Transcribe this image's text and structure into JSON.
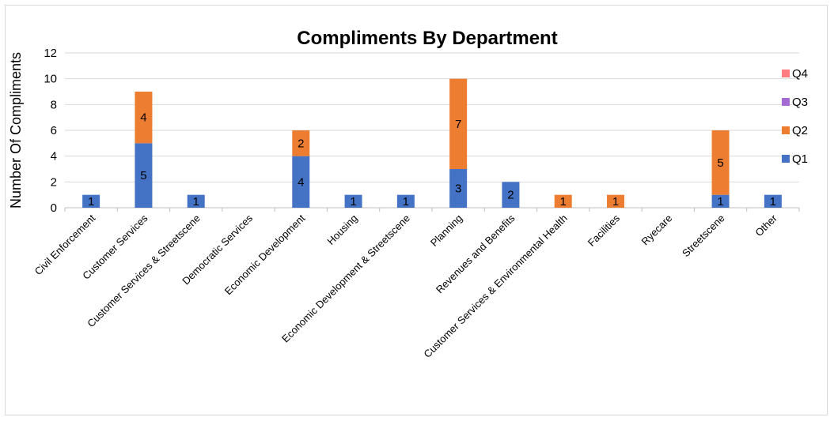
{
  "chart_data": {
    "type": "bar",
    "stacked": true,
    "title": "Compliments By Department",
    "xlabel": "",
    "ylabel": "Number Of Compliments",
    "ylim": [
      0,
      12
    ],
    "yticks": [
      0,
      2,
      4,
      6,
      8,
      10,
      12
    ],
    "grid": true,
    "legend_position": "right",
    "categories": [
      "Civil Enforcement",
      "Customer Services",
      "Customer Services & Streetscene",
      "Democratic Services",
      "Economic Development",
      "Housing",
      "Economic Development & Streetscene",
      "Planning",
      "Revenues and Benefits",
      "Customer Services & Environmental Health",
      "Facilities",
      "Ryecare",
      "Streetscene",
      "Other"
    ],
    "series": [
      {
        "name": "Q1",
        "color": "#4472C4",
        "values": [
          1,
          5,
          1,
          0,
          4,
          1,
          1,
          3,
          2,
          0,
          0,
          0,
          1,
          1
        ]
      },
      {
        "name": "Q2",
        "color": "#ED7D31",
        "values": [
          0,
          4,
          0,
          0,
          2,
          0,
          0,
          7,
          0,
          1,
          1,
          0,
          5,
          0
        ]
      },
      {
        "name": "Q3",
        "color": "#A66BD3",
        "values": [
          0,
          0,
          0,
          0,
          0,
          0,
          0,
          0,
          0,
          0,
          0,
          0,
          0,
          0
        ]
      },
      {
        "name": "Q4",
        "color": "#FF7C80",
        "values": [
          0,
          0,
          0,
          0,
          0,
          0,
          0,
          0,
          0,
          0,
          0,
          0,
          0,
          0
        ]
      }
    ]
  }
}
